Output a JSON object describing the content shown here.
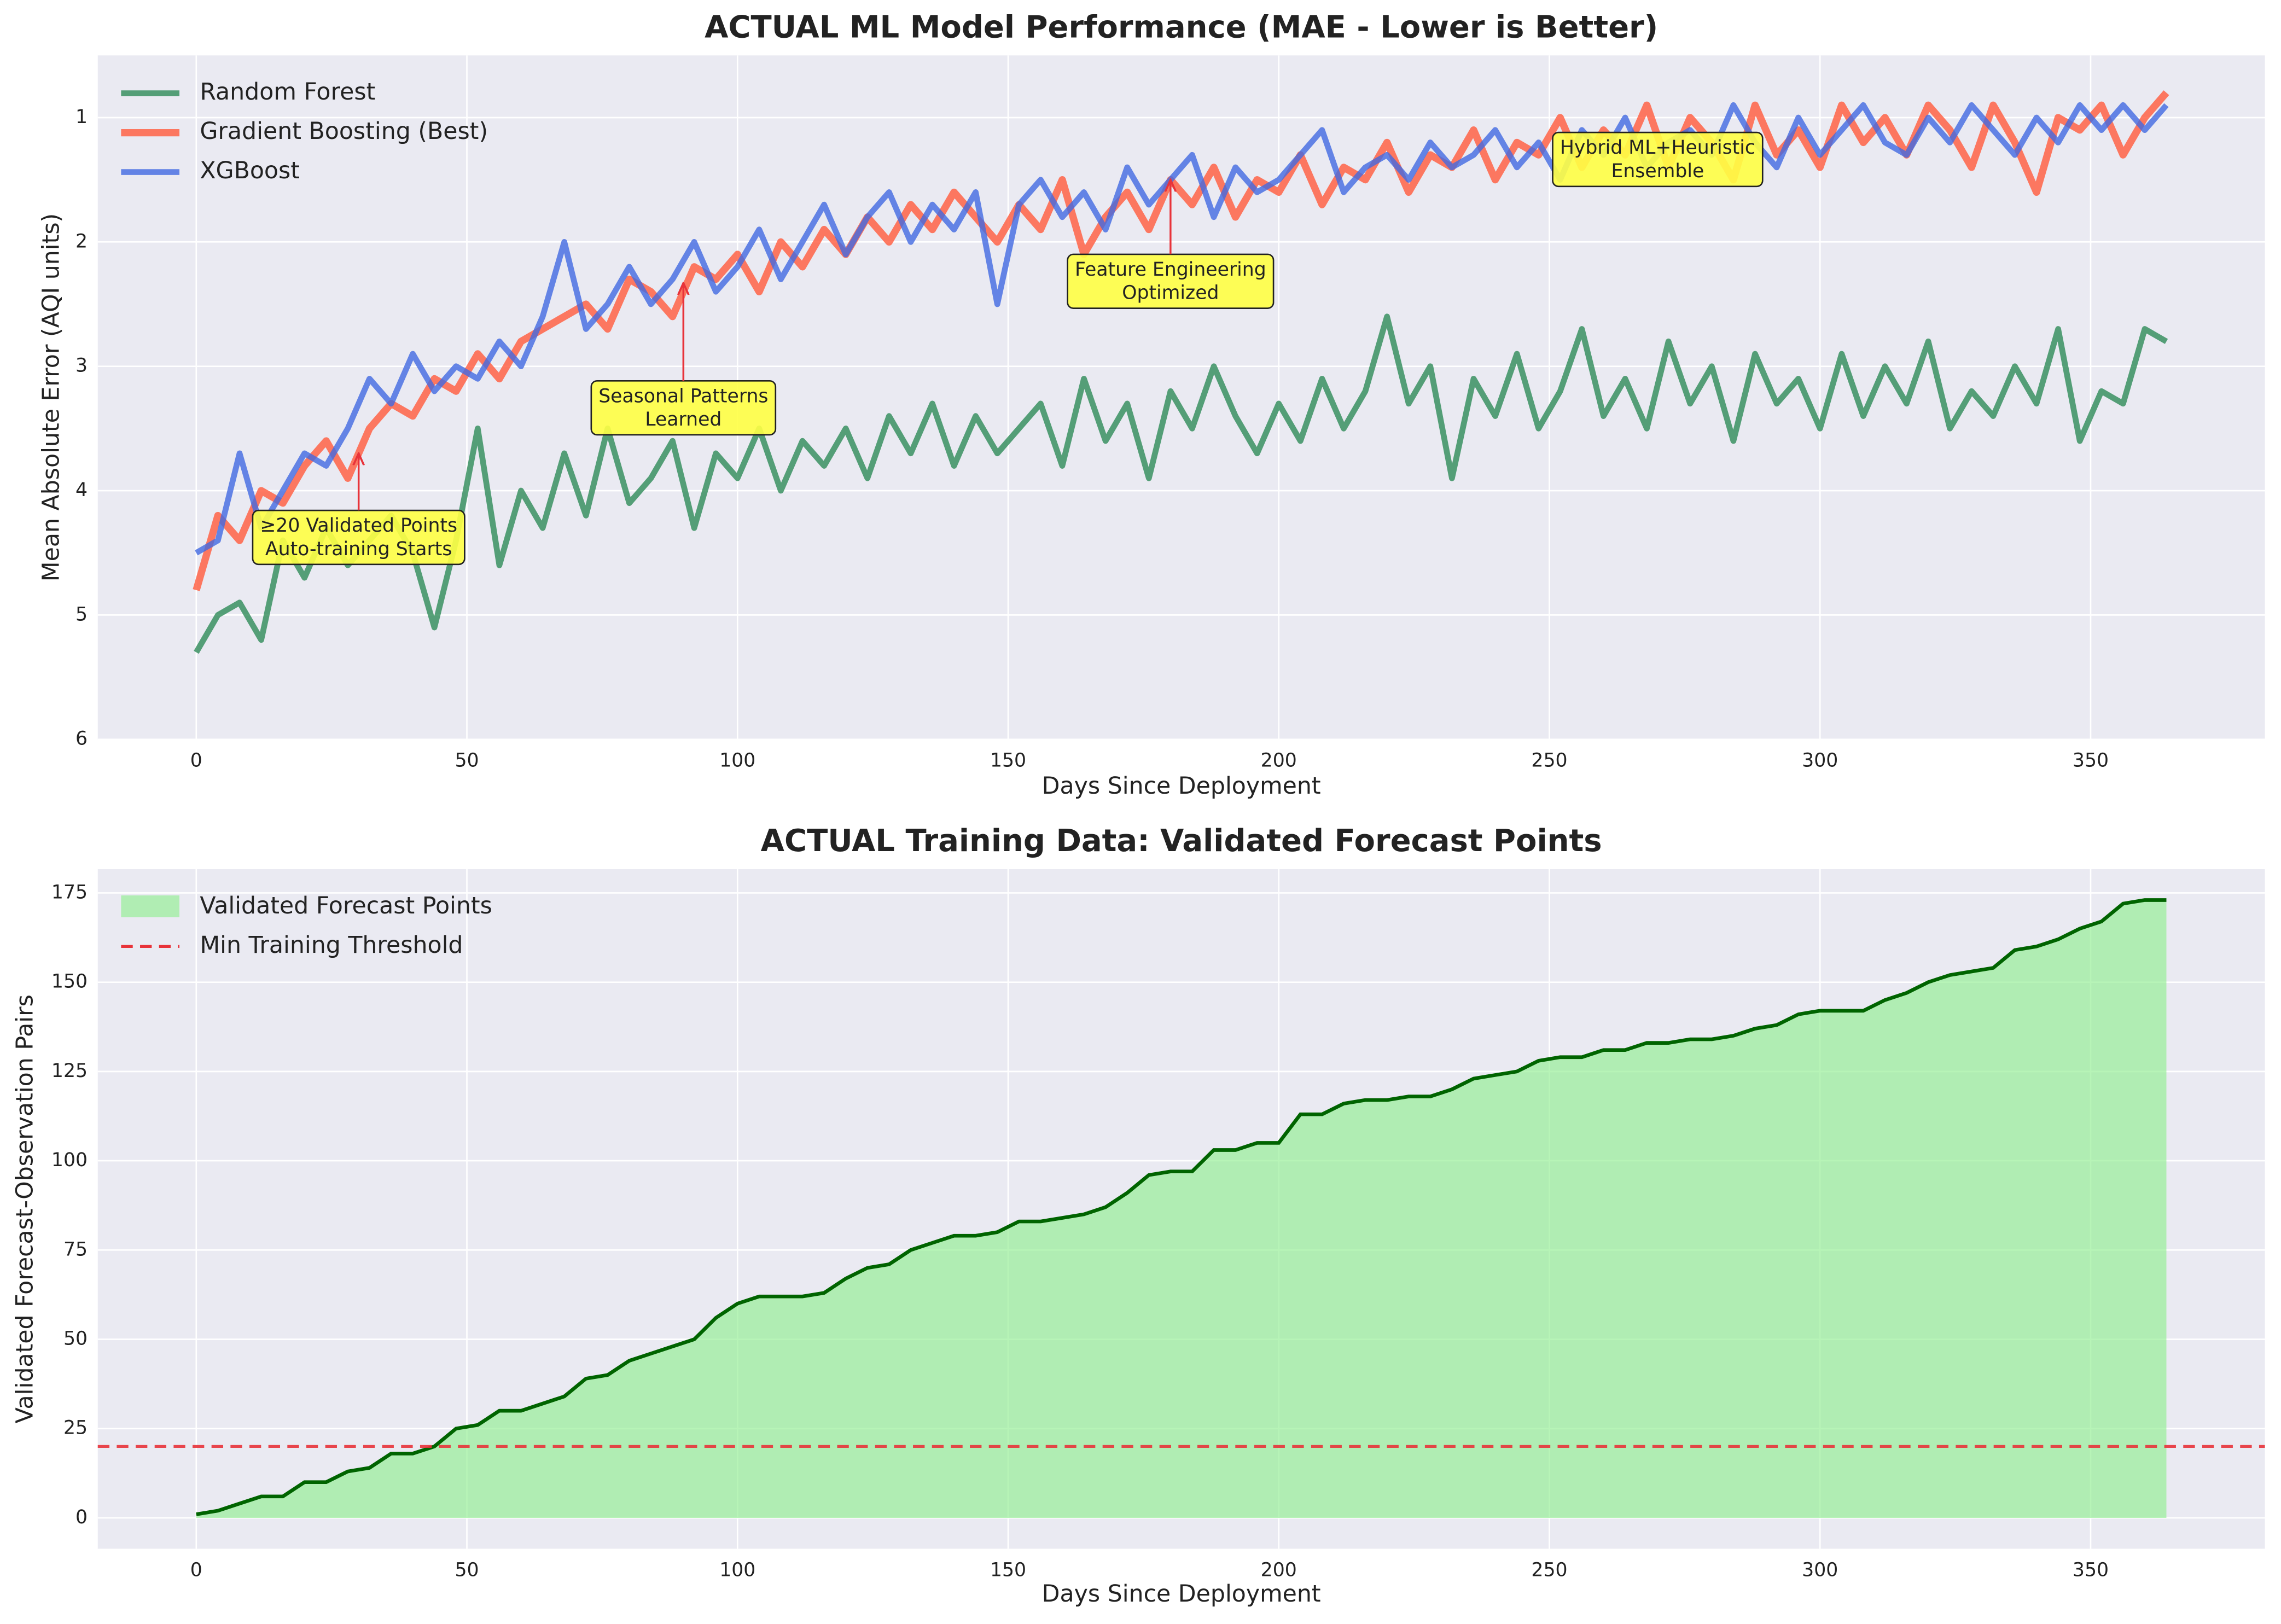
{
  "chart_data": [
    {
      "type": "line",
      "title": "ACTUAL ML Model Performance (MAE - Lower is Better)",
      "xlabel": "Days Since Deployment",
      "ylabel": "Mean Absolute Error (AQI units)",
      "x": [
        0,
        4,
        8,
        12,
        16,
        20,
        24,
        28,
        32,
        36,
        40,
        44,
        48,
        52,
        56,
        60,
        64,
        68,
        72,
        76,
        80,
        84,
        88,
        92,
        96,
        100,
        104,
        108,
        112,
        116,
        120,
        124,
        128,
        132,
        136,
        140,
        144,
        148,
        152,
        156,
        160,
        164,
        168,
        172,
        176,
        180,
        184,
        188,
        192,
        196,
        200,
        204,
        208,
        212,
        216,
        220,
        224,
        228,
        232,
        236,
        240,
        244,
        248,
        252,
        256,
        260,
        264,
        268,
        272,
        276,
        280,
        284,
        288,
        292,
        296,
        300,
        304,
        308,
        312,
        316,
        320,
        324,
        328,
        332,
        336,
        340,
        344,
        348,
        352,
        356,
        360,
        364
      ],
      "series": [
        {
          "name": "Random Forest",
          "color": "#2e8b57",
          "values": [
            5.3,
            5.0,
            4.9,
            5.2,
            4.4,
            4.7,
            4.3,
            4.6,
            4.4,
            4.2,
            4.5,
            5.1,
            4.4,
            3.5,
            4.6,
            4.0,
            4.3,
            3.7,
            4.2,
            3.5,
            4.1,
            3.9,
            3.6,
            4.3,
            3.7,
            3.9,
            3.5,
            4.0,
            3.6,
            3.8,
            3.5,
            3.9,
            3.4,
            3.7,
            3.3,
            3.8,
            3.4,
            3.7,
            3.5,
            3.3,
            3.8,
            3.1,
            3.6,
            3.3,
            3.9,
            3.2,
            3.5,
            3.0,
            3.4,
            3.7,
            3.3,
            3.6,
            3.1,
            3.5,
            3.2,
            2.6,
            3.3,
            3.0,
            3.9,
            3.1,
            3.4,
            2.9,
            3.5,
            3.2,
            2.7,
            3.4,
            3.1,
            3.5,
            2.8,
            3.3,
            3.0,
            3.6,
            2.9,
            3.3,
            3.1,
            3.5,
            2.9,
            3.4,
            3.0,
            3.3,
            2.8,
            3.5,
            3.2,
            3.4,
            3.0,
            3.3,
            2.7,
            3.6,
            3.2,
            3.3,
            2.7,
            2.8
          ]
        },
        {
          "name": "Gradient Boosting (Best)",
          "color": "#ff6347",
          "values": [
            4.8,
            4.2,
            4.4,
            4.0,
            4.1,
            3.8,
            3.6,
            3.9,
            3.5,
            3.3,
            3.4,
            3.1,
            3.2,
            2.9,
            3.1,
            2.8,
            2.7,
            2.6,
            2.5,
            2.7,
            2.3,
            2.4,
            2.6,
            2.2,
            2.3,
            2.1,
            2.4,
            2.0,
            2.2,
            1.9,
            2.1,
            1.8,
            2.0,
            1.7,
            1.9,
            1.6,
            1.8,
            2.0,
            1.7,
            1.9,
            1.5,
            2.1,
            1.8,
            1.6,
            1.9,
            1.5,
            1.7,
            1.4,
            1.8,
            1.5,
            1.6,
            1.3,
            1.7,
            1.4,
            1.5,
            1.2,
            1.6,
            1.3,
            1.4,
            1.1,
            1.5,
            1.2,
            1.3,
            1.0,
            1.4,
            1.1,
            1.3,
            0.9,
            1.4,
            1.0,
            1.2,
            1.5,
            0.9,
            1.3,
            1.1,
            1.4,
            0.9,
            1.2,
            1.0,
            1.3,
            0.9,
            1.1,
            1.4,
            0.9,
            1.2,
            1.6,
            1.0,
            1.1,
            0.9,
            1.3,
            1.0,
            0.8
          ]
        },
        {
          "name": "XGBoost",
          "color": "#4169e1",
          "values": [
            4.5,
            4.4,
            3.7,
            4.3,
            4.0,
            3.7,
            3.8,
            3.5,
            3.1,
            3.3,
            2.9,
            3.2,
            3.0,
            3.1,
            2.8,
            3.0,
            2.6,
            2.0,
            2.7,
            2.5,
            2.2,
            2.5,
            2.3,
            2.0,
            2.4,
            2.2,
            1.9,
            2.3,
            2.0,
            1.7,
            2.1,
            1.8,
            1.6,
            2.0,
            1.7,
            1.9,
            1.6,
            2.5,
            1.7,
            1.5,
            1.8,
            1.6,
            1.9,
            1.4,
            1.7,
            1.5,
            1.3,
            1.8,
            1.4,
            1.6,
            1.5,
            1.3,
            1.1,
            1.6,
            1.4,
            1.3,
            1.5,
            1.2,
            1.4,
            1.3,
            1.1,
            1.4,
            1.2,
            1.5,
            1.1,
            1.3,
            1.0,
            1.4,
            1.2,
            1.1,
            1.3,
            0.9,
            1.2,
            1.4,
            1.0,
            1.3,
            1.1,
            0.9,
            1.2,
            1.3,
            1.0,
            1.2,
            0.9,
            1.1,
            1.3,
            1.0,
            1.2,
            0.9,
            1.1,
            0.9,
            1.1,
            0.9
          ]
        }
      ],
      "xlim": [
        -18.2,
        382.2
      ],
      "ylim": [
        0.5,
        6
      ],
      "y_inverted": true,
      "xticks": [
        0,
        50,
        100,
        150,
        200,
        250,
        300,
        350
      ],
      "yticks": [
        1,
        2,
        3,
        4,
        5,
        6
      ],
      "grid": true,
      "legend": "upper left",
      "annotations": [
        {
          "text": [
            "≥20 Validated Points",
            "Auto-training Starts"
          ],
          "x": 30,
          "y": 3.7
        },
        {
          "text": [
            "Seasonal Patterns",
            "Learned"
          ],
          "x": 90,
          "y": 2.33
        },
        {
          "text": [
            "Feature Engineering",
            "Optimized"
          ],
          "x": 180,
          "y": 1.5
        },
        {
          "text": [
            "Hybrid ML+Heuristic",
            "Ensemble"
          ],
          "x": 270,
          "y": 1.2
        }
      ]
    },
    {
      "type": "area",
      "title": "ACTUAL Training Data: Validated Forecast Points",
      "xlabel": "Days Since Deployment",
      "ylabel": "Validated Forecast-Observation Pairs",
      "x": [
        0,
        4,
        8,
        12,
        16,
        20,
        24,
        28,
        32,
        36,
        40,
        44,
        48,
        52,
        56,
        60,
        64,
        68,
        72,
        76,
        80,
        84,
        88,
        92,
        96,
        100,
        104,
        108,
        112,
        116,
        120,
        124,
        128,
        132,
        136,
        140,
        144,
        148,
        152,
        156,
        160,
        164,
        168,
        172,
        176,
        180,
        184,
        188,
        192,
        196,
        200,
        204,
        208,
        212,
        216,
        220,
        224,
        228,
        232,
        236,
        240,
        244,
        248,
        252,
        256,
        260,
        264,
        268,
        272,
        276,
        280,
        284,
        288,
        292,
        296,
        300,
        304,
        308,
        312,
        316,
        320,
        324,
        328,
        332,
        336,
        340,
        344,
        348,
        352,
        356,
        360,
        364
      ],
      "series": [
        {
          "name": "Validated Forecast Points",
          "color": "#90ee90",
          "line_color": "#006400",
          "values": [
            1,
            2,
            4,
            6,
            6,
            10,
            10,
            13,
            14,
            18,
            18,
            20,
            25,
            26,
            30,
            30,
            32,
            34,
            39,
            40,
            44,
            46,
            48,
            50,
            56,
            60,
            62,
            62,
            62,
            63,
            67,
            70,
            71,
            75,
            77,
            79,
            79,
            80,
            83,
            83,
            84,
            85,
            87,
            91,
            96,
            97,
            97,
            103,
            103,
            105,
            105,
            113,
            113,
            116,
            117,
            117,
            118,
            118,
            120,
            123,
            124,
            125,
            128,
            129,
            129,
            131,
            131,
            133,
            133,
            134,
            134,
            135,
            137,
            138,
            141,
            142,
            142,
            142,
            145,
            147,
            150,
            152,
            153,
            154,
            159,
            160,
            162,
            165,
            167,
            172,
            173,
            173
          ]
        }
      ],
      "threshold": {
        "name": "Min Training Threshold",
        "value": 20,
        "color": "#e8333a"
      },
      "xlim": [
        -18.2,
        382.2
      ],
      "ylim": [
        -8.65,
        181.65
      ],
      "xticks": [
        0,
        50,
        100,
        150,
        200,
        250,
        300,
        350
      ],
      "yticks": [
        0,
        25,
        50,
        75,
        100,
        125,
        150,
        175
      ],
      "grid": true,
      "legend": "upper left"
    }
  ]
}
